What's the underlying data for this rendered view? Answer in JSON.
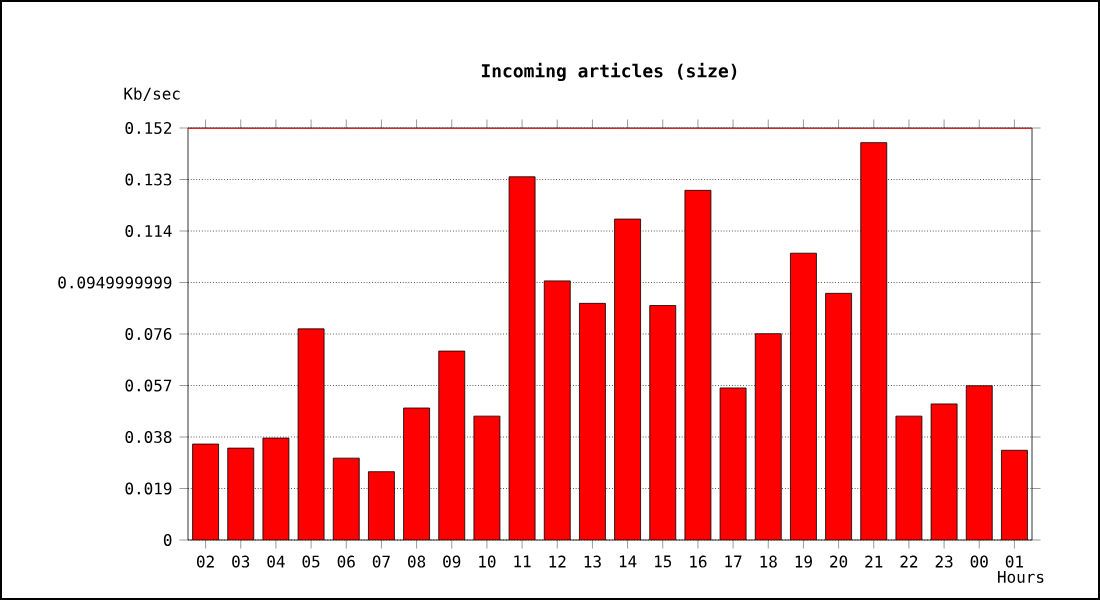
{
  "chart_data": {
    "type": "bar",
    "title": "Incoming articles (size)",
    "ylabel": "Kb/sec",
    "xlabel": "Hours",
    "categories": [
      "02",
      "03",
      "04",
      "05",
      "06",
      "07",
      "08",
      "09",
      "10",
      "11",
      "12",
      "13",
      "14",
      "15",
      "16",
      "17",
      "18",
      "19",
      "20",
      "21",
      "22",
      "23",
      "00",
      "01"
    ],
    "values": [
      0.0354,
      0.0339,
      0.0376,
      0.0779,
      0.0302,
      0.0252,
      0.0487,
      0.0697,
      0.0457,
      0.134,
      0.0956,
      0.0873,
      0.1184,
      0.0865,
      0.129,
      0.0561,
      0.0761,
      0.1058,
      0.091,
      0.1466,
      0.0457,
      0.0502,
      0.0569,
      0.0331
    ],
    "color": "#ff0000",
    "ylim": [
      0,
      0.152
    ],
    "yticks": [
      0,
      0.019,
      0.038,
      0.057,
      0.076,
      0.0949999999,
      0.114,
      0.133,
      0.152
    ],
    "grid": "y",
    "ref_lines": [
      {
        "axis": "y",
        "value": 0.152,
        "color": "#ff0000"
      }
    ]
  }
}
